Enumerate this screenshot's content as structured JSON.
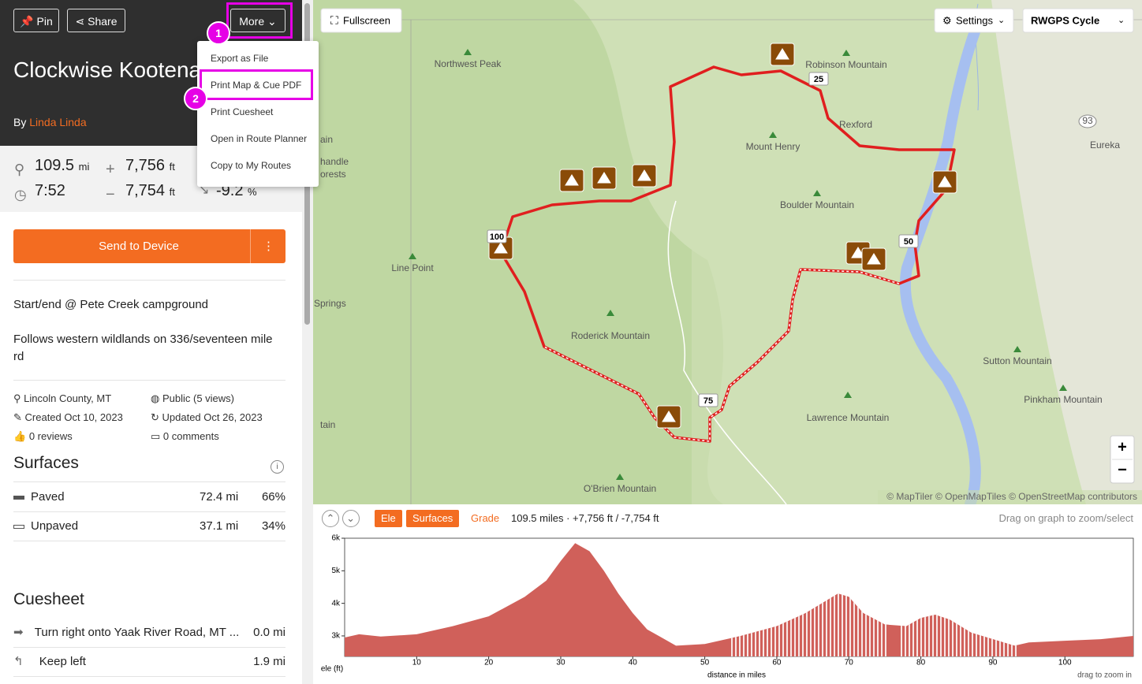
{
  "header": {
    "pin": "Pin",
    "share": "Share",
    "more": "More",
    "title": "Clockwise Kootenai loop",
    "by": "By",
    "author": "Linda Linda"
  },
  "stats": [
    {
      "value": "109.5",
      "unit": "mi"
    },
    {
      "value": "7,756",
      "unit": "ft"
    },
    {
      "value": "7:52"
    },
    {
      "value": "7,754",
      "unit": "ft"
    },
    {
      "value": "-9.2",
      "unit": "%"
    }
  ],
  "menu": [
    "Export as File",
    "Print Map & Cue PDF",
    "Print Cuesheet",
    "Open in Route Planner",
    "Copy to My Routes"
  ],
  "annotations": [
    "1",
    "2"
  ],
  "send_to_device": "Send to Device",
  "description": [
    "Start/end @ Pete Creek campground",
    "Follows western wildlands on 336/seventeen mile rd"
  ],
  "meta": [
    "Lincoln County, MT",
    "Public (5 views)",
    "Created Oct 10, 2023",
    "Updated Oct 26, 2023",
    "0 reviews",
    "0 comments"
  ],
  "surfaces": {
    "title": "Surfaces",
    "rows": [
      [
        "Paved",
        "72.4 mi",
        "66%"
      ],
      [
        "Unpaved",
        "37.1 mi",
        "34%"
      ]
    ]
  },
  "cuesheet": {
    "title": "Cuesheet",
    "rows": [
      [
        "Turn right onto Yaak River Road, MT ...",
        "0.0 mi"
      ],
      [
        "Keep left",
        "1.9 mi"
      ]
    ]
  },
  "map": {
    "fullscreen": "Fullscreen",
    "settings": "Settings",
    "layer": "RWGPS Cycle",
    "labels": [
      "Northwest Peak",
      "Robinson Mountain",
      "Rexford",
      "Eureka",
      "93",
      "Mount Henry",
      "ain",
      "handle",
      "orests",
      "Boulder Mountain",
      "Line Point",
      "Springs",
      "Roderick Mountain",
      "Sutton Mountain",
      "Pinkham Mountain",
      "Lawrence Mountain",
      "tain",
      "O'Brien Mountain"
    ],
    "mile_markers": [
      "25",
      "50",
      "75",
      "100"
    ],
    "zoom_in": "+",
    "zoom_out": "−",
    "attribution": "© MapTiler © OpenMapTiles © OpenStreetMap contributors"
  },
  "elevation_bar": {
    "tabs": [
      "Ele",
      "Surfaces",
      "Grade"
    ],
    "summary": "109.5 miles · +7,756 ft / -7,754 ft",
    "hint": "Drag on graph to zoom/select"
  },
  "chart_data": {
    "type": "area",
    "xlabel": "distance in miles",
    "ylabel": "ele (ft)",
    "note": "drag to zoom in",
    "color": "#d0605a",
    "x": [
      0,
      2,
      5,
      10,
      15,
      20,
      25,
      28,
      30,
      32,
      34,
      36,
      38,
      40,
      42,
      44,
      46,
      50,
      55,
      60,
      64,
      67,
      68.5,
      70,
      72,
      75,
      78,
      80,
      82,
      84,
      87,
      90,
      93,
      95,
      100,
      105,
      109.5
    ],
    "values": [
      2950,
      3050,
      2980,
      3050,
      3300,
      3600,
      4200,
      4700,
      5300,
      5850,
      5600,
      5000,
      4300,
      3700,
      3200,
      2950,
      2700,
      2750,
      3000,
      3300,
      3700,
      4100,
      4300,
      4200,
      3700,
      3350,
      3300,
      3550,
      3650,
      3500,
      3100,
      2900,
      2700,
      2800,
      2850,
      2900,
      3000
    ],
    "xlim": [
      0,
      109.5
    ],
    "ylim": [
      2370,
      6000
    ],
    "xticks": [
      10,
      20,
      30,
      40,
      50,
      60,
      70,
      80,
      90,
      100
    ],
    "yticks": [
      {
        "value": 3000,
        "label": "3k"
      },
      {
        "value": 4000,
        "label": "4k"
      },
      {
        "value": 5000,
        "label": "5k"
      },
      {
        "value": 6000,
        "label": "6k"
      }
    ]
  }
}
